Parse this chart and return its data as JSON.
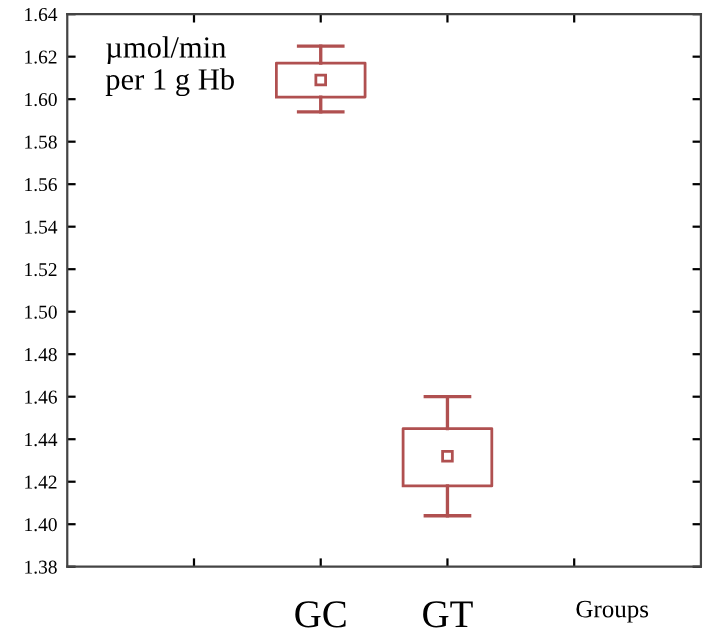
{
  "chart_data": {
    "type": "box",
    "categories": [
      null,
      "GC",
      "GT",
      null
    ],
    "boxes": [
      null,
      {
        "low": 1.594,
        "q1": 1.601,
        "median": 1.609,
        "q3": 1.617,
        "high": 1.625
      },
      {
        "low": 1.404,
        "q1": 1.418,
        "median": 1.432,
        "q3": 1.445,
        "high": 1.46
      },
      null
    ],
    "color": "#b05050",
    "xlabel": "Groups",
    "annotations": [
      "µmol/min\nper 1 g Hb"
    ],
    "ylim": [
      1.38,
      1.64
    ],
    "yticks": [
      {
        "value": 1.38,
        "label": "1.38"
      },
      {
        "value": 1.4,
        "label": "1.40"
      },
      {
        "value": 1.42,
        "label": "1.42"
      },
      {
        "value": 1.44,
        "label": "1.44"
      },
      {
        "value": 1.46,
        "label": "1.46"
      },
      {
        "value": 1.48,
        "label": "1.48"
      },
      {
        "value": 1.5,
        "label": "1.50"
      },
      {
        "value": 1.52,
        "label": "1.52"
      },
      {
        "value": 1.54,
        "label": "1.54"
      },
      {
        "value": 1.56,
        "label": "1.56"
      },
      {
        "value": 1.58,
        "label": "1.58"
      },
      {
        "value": 1.6,
        "label": "1.60"
      },
      {
        "value": 1.62,
        "label": "1.62"
      },
      {
        "value": 1.64,
        "label": "1.64"
      }
    ],
    "grid": false
  }
}
